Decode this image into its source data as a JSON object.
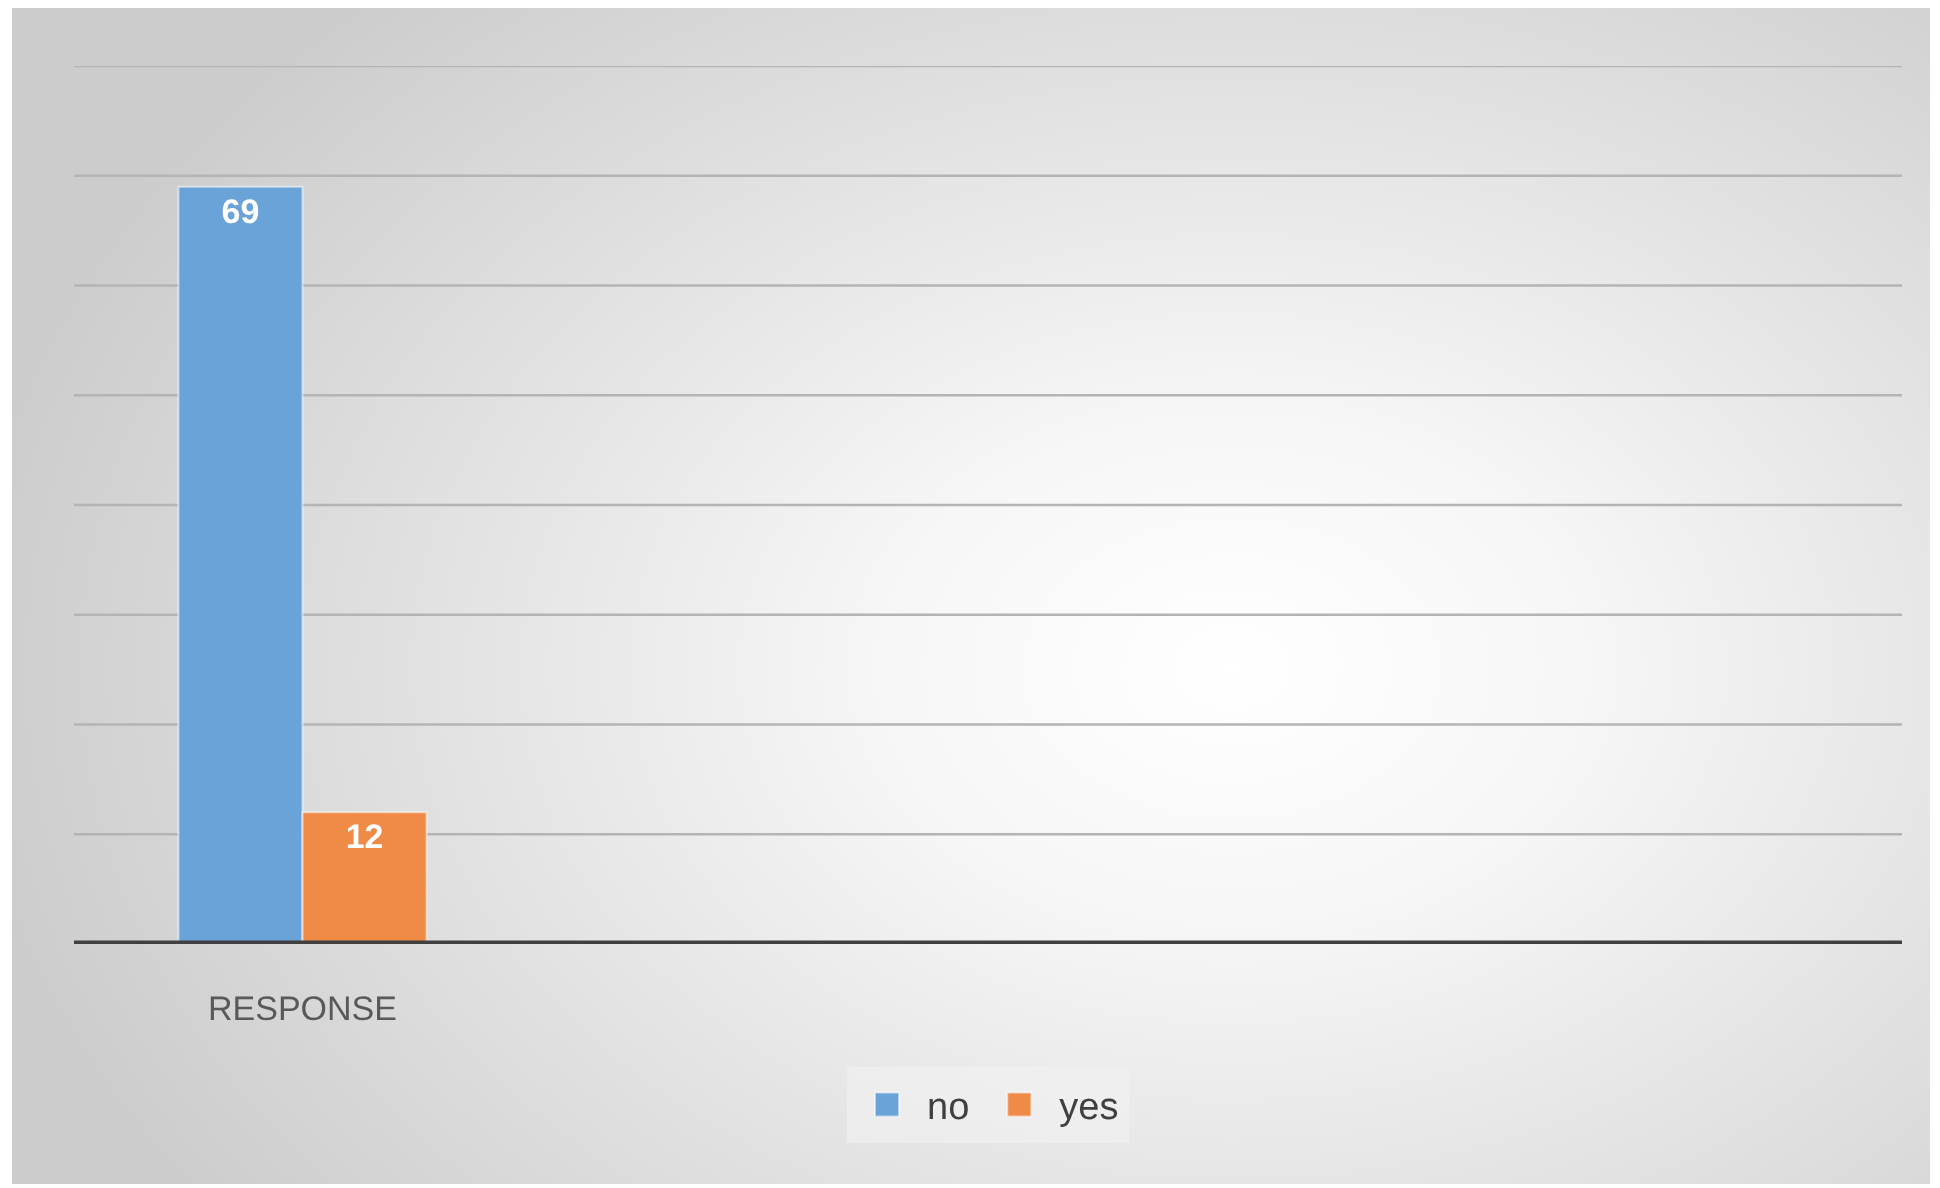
{
  "chart_data": {
    "type": "bar",
    "categories": [
      "RESPONSE"
    ],
    "series": [
      {
        "name": "no",
        "color": "#6aa3d7",
        "values": [
          69
        ]
      },
      {
        "name": "yes",
        "color": "#ef8a47",
        "values": [
          12
        ]
      }
    ],
    "ylim": [
      0,
      80
    ],
    "yticks": [
      {
        "value": 0,
        "label": null
      },
      {
        "value": 10,
        "label": null
      },
      {
        "value": 20,
        "label": null
      },
      {
        "value": 30,
        "label": null
      },
      {
        "value": 40,
        "label": null
      },
      {
        "value": 50,
        "label": null
      },
      {
        "value": 60,
        "label": null
      },
      {
        "value": 70,
        "label": null
      },
      {
        "value": 80,
        "label": null
      }
    ],
    "grid": "y",
    "legend": "bottom",
    "data_labels": true,
    "tick_labels": "x"
  }
}
